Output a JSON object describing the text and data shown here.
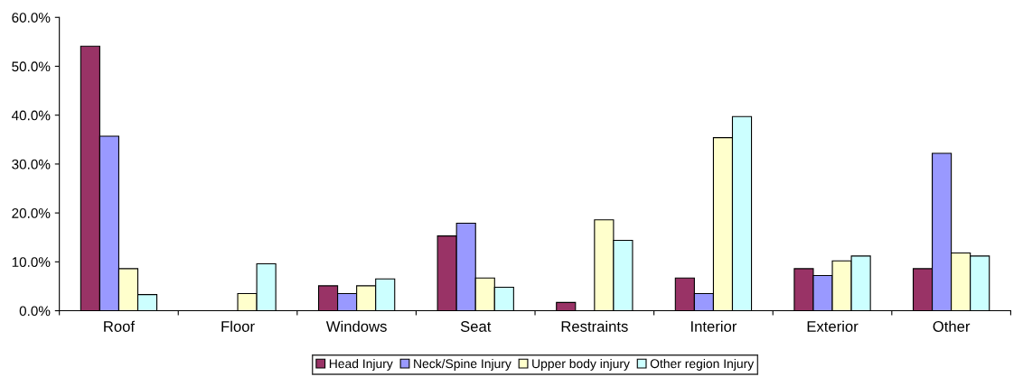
{
  "chart_data": {
    "type": "bar",
    "categories": [
      "Roof",
      "Floor",
      "Windows",
      "Seat",
      "Restraints",
      "Interior",
      "Exterior",
      "Other"
    ],
    "series": [
      {
        "name": "Head Injury",
        "color": "#993366",
        "values": [
          54.1,
          null,
          5.1,
          15.3,
          1.7,
          6.7,
          8.6,
          8.6
        ]
      },
      {
        "name": "Neck/Spine Injury",
        "color": "#9999ff",
        "values": [
          35.7,
          null,
          3.5,
          17.9,
          null,
          3.5,
          7.2,
          32.2
        ]
      },
      {
        "name": "Upper body injury",
        "color": "#ffffcc",
        "values": [
          8.6,
          3.5,
          5.1,
          6.7,
          18.6,
          35.4,
          10.2,
          11.8
        ]
      },
      {
        "name": "Other region Injury",
        "color": "#ccffff",
        "values": [
          3.3,
          9.6,
          6.5,
          4.8,
          14.4,
          39.7,
          11.2,
          11.2
        ]
      }
    ],
    "ylim": [
      0,
      60
    ],
    "yticks": [
      {
        "value": 0,
        "label": "0.0%"
      },
      {
        "value": 10,
        "label": "10.0%"
      },
      {
        "value": 20,
        "label": "20.0%"
      },
      {
        "value": 30,
        "label": "30.0%"
      },
      {
        "value": 40,
        "label": "40.0%"
      },
      {
        "value": 50,
        "label": "50.0%"
      },
      {
        "value": 60,
        "label": "60.0%"
      }
    ],
    "grid": false,
    "legend": "bottom"
  }
}
